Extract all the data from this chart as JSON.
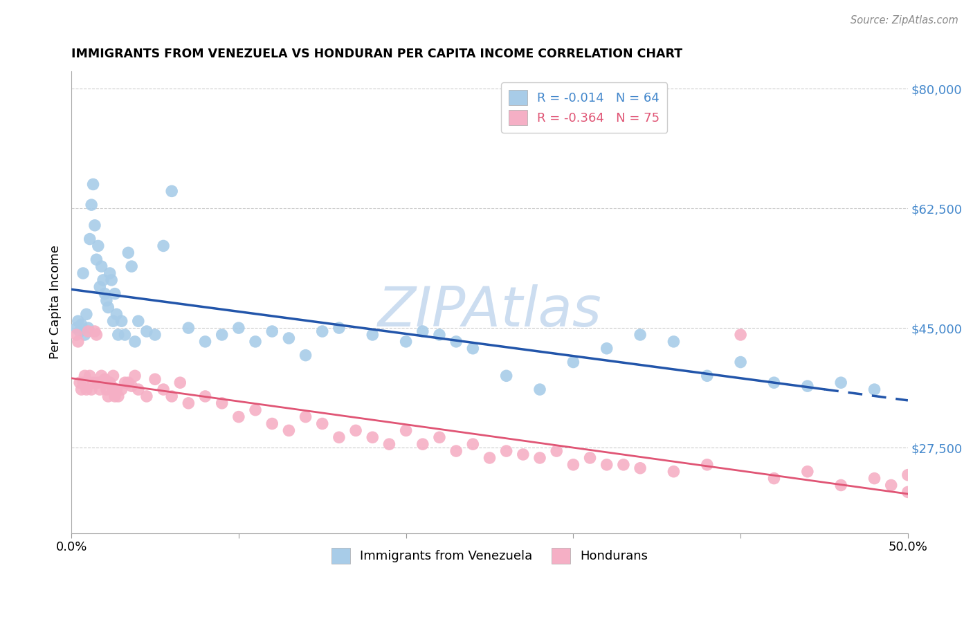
{
  "title": "IMMIGRANTS FROM VENEZUELA VS HONDURAN PER CAPITA INCOME CORRELATION CHART",
  "source": "Source: ZipAtlas.com",
  "ylabel": "Per Capita Income",
  "xlim": [
    0.0,
    0.5
  ],
  "ylim": [
    15000,
    82500
  ],
  "ytick_vals": [
    27500,
    45000,
    62500,
    80000
  ],
  "ytick_labels": [
    "$27,500",
    "$45,000",
    "$62,500",
    "$80,000"
  ],
  "xtick_vals": [
    0.0,
    0.1,
    0.2,
    0.3,
    0.4,
    0.5
  ],
  "xtick_labels": [
    "0.0%",
    "",
    "",
    "",
    "",
    "50.0%"
  ],
  "legend_label1": "R = -0.014   N = 64",
  "legend_label2": "R = -0.364   N = 75",
  "legend_label_bottom1": "Immigrants from Venezuela",
  "legend_label_bottom2": "Hondurans",
  "color_blue": "#a8cce8",
  "color_pink": "#f5afc5",
  "color_blue_line": "#2255aa",
  "color_pink_line": "#e05575",
  "color_axis_label": "#4488cc",
  "watermark": "ZIPAtlas",
  "watermark_color": "#ccddf0",
  "blue_scatter_x": [
    0.003,
    0.004,
    0.005,
    0.006,
    0.007,
    0.008,
    0.009,
    0.01,
    0.011,
    0.012,
    0.013,
    0.014,
    0.015,
    0.016,
    0.017,
    0.018,
    0.019,
    0.02,
    0.021,
    0.022,
    0.023,
    0.024,
    0.025,
    0.026,
    0.027,
    0.028,
    0.03,
    0.032,
    0.034,
    0.036,
    0.038,
    0.04,
    0.045,
    0.05,
    0.055,
    0.06,
    0.07,
    0.08,
    0.09,
    0.1,
    0.11,
    0.12,
    0.13,
    0.14,
    0.15,
    0.16,
    0.18,
    0.2,
    0.21,
    0.22,
    0.23,
    0.24,
    0.26,
    0.28,
    0.3,
    0.32,
    0.34,
    0.36,
    0.38,
    0.4,
    0.42,
    0.44,
    0.46,
    0.48
  ],
  "blue_scatter_y": [
    45000,
    46000,
    44500,
    45500,
    53000,
    44000,
    47000,
    45000,
    58000,
    63000,
    66000,
    60000,
    55000,
    57000,
    51000,
    54000,
    52000,
    50000,
    49000,
    48000,
    53000,
    52000,
    46000,
    50000,
    47000,
    44000,
    46000,
    44000,
    56000,
    54000,
    43000,
    46000,
    44500,
    44000,
    57000,
    65000,
    45000,
    43000,
    44000,
    45000,
    43000,
    44500,
    43500,
    41000,
    44500,
    45000,
    44000,
    43000,
    44500,
    44000,
    43000,
    42000,
    38000,
    36000,
    40000,
    42000,
    44000,
    43000,
    38000,
    40000,
    37000,
    36500,
    37000,
    36000
  ],
  "pink_scatter_x": [
    0.003,
    0.004,
    0.005,
    0.006,
    0.007,
    0.008,
    0.009,
    0.01,
    0.011,
    0.012,
    0.013,
    0.014,
    0.015,
    0.016,
    0.017,
    0.018,
    0.019,
    0.02,
    0.021,
    0.022,
    0.023,
    0.024,
    0.025,
    0.026,
    0.027,
    0.028,
    0.03,
    0.032,
    0.034,
    0.036,
    0.038,
    0.04,
    0.045,
    0.05,
    0.055,
    0.06,
    0.065,
    0.07,
    0.08,
    0.09,
    0.1,
    0.11,
    0.12,
    0.13,
    0.14,
    0.15,
    0.16,
    0.17,
    0.18,
    0.19,
    0.2,
    0.21,
    0.22,
    0.23,
    0.24,
    0.25,
    0.26,
    0.27,
    0.28,
    0.29,
    0.3,
    0.31,
    0.32,
    0.33,
    0.34,
    0.36,
    0.38,
    0.4,
    0.42,
    0.44,
    0.46,
    0.48,
    0.49,
    0.5,
    0.5
  ],
  "pink_scatter_y": [
    44000,
    43000,
    37000,
    36000,
    37000,
    38000,
    36000,
    44500,
    38000,
    36000,
    37000,
    44500,
    44000,
    37000,
    36000,
    38000,
    37000,
    37500,
    36000,
    35000,
    37000,
    36500,
    38000,
    35000,
    36000,
    35000,
    36000,
    37000,
    37000,
    36500,
    38000,
    36000,
    35000,
    37500,
    36000,
    35000,
    37000,
    34000,
    35000,
    34000,
    32000,
    33000,
    31000,
    30000,
    32000,
    31000,
    29000,
    30000,
    29000,
    28000,
    30000,
    28000,
    29000,
    27000,
    28000,
    26000,
    27000,
    26500,
    26000,
    27000,
    25000,
    26000,
    25000,
    25000,
    24500,
    24000,
    25000,
    44000,
    23000,
    24000,
    22000,
    23000,
    22000,
    21000,
    23500
  ]
}
